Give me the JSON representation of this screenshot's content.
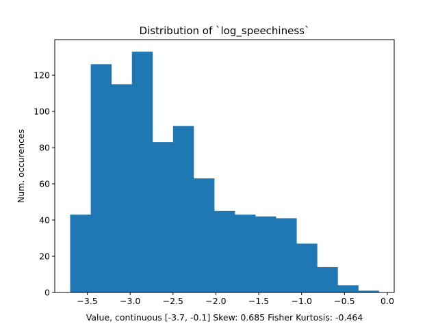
{
  "chart_data": {
    "type": "bar",
    "title": "Distribution of `log_speechiness`",
    "xlabel": "Value, continuous [-3.7, -0.1]    Skew: 0.685 Fisher Kurtosis: -0.464",
    "ylabel": "Num. occurences",
    "bin_edges": [
      -3.7,
      -3.46,
      -3.22,
      -2.98,
      -2.74,
      -2.5,
      -2.26,
      -2.02,
      -1.78,
      -1.54,
      -1.3,
      -1.06,
      -0.82,
      -0.58,
      -0.34,
      -0.1
    ],
    "values": [
      43,
      126,
      115,
      133,
      83,
      92,
      63,
      45,
      43,
      42,
      41,
      27,
      14,
      4,
      1
    ],
    "xlim": [
      -3.88,
      0.08
    ],
    "ylim": [
      0,
      139.65
    ],
    "xticks": [
      -3.5,
      -3.0,
      -2.5,
      -2.0,
      -1.5,
      -1.0,
      -0.5,
      0.0
    ],
    "xtick_labels": [
      "−3.5",
      "−3.0",
      "−2.5",
      "−2.0",
      "−1.5",
      "−1.0",
      "−0.5",
      "0.0"
    ],
    "yticks": [
      0,
      20,
      40,
      60,
      80,
      100,
      120
    ],
    "ytick_labels": [
      "0",
      "20",
      "40",
      "60",
      "80",
      "100",
      "120"
    ],
    "bar_color": "#1f77b4",
    "grid": false,
    "legend": "none"
  }
}
